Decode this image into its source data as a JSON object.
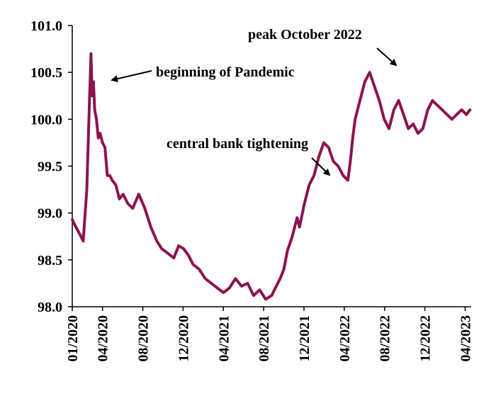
{
  "chart_data": {
    "type": "line",
    "title": "",
    "xlabel": "",
    "ylabel": "",
    "ylim": [
      98.0,
      101.0
    ],
    "yticks": [
      "98.0",
      "98.5",
      "99.0",
      "99.5",
      "100.0",
      "100.5",
      "101.0"
    ],
    "xticks": [
      "01/2020",
      "04/2020",
      "08/2020",
      "12/2020",
      "04/2021",
      "08/2021",
      "12/2021",
      "04/2022",
      "08/2022",
      "12/2022",
      "04/2023"
    ],
    "grid": false,
    "line_color": "#8b1450",
    "annotations": [
      {
        "text": "beginning  of Pandemic",
        "x": 2020.18,
        "y": 100.45
      },
      {
        "text": "central bank tightening",
        "x": 2022.08,
        "y": 99.4
      },
      {
        "text": "peak October 2022",
        "x": 2022.58,
        "y": 100.55
      }
    ],
    "series": [
      {
        "x": [
          2020.0,
          2020.03,
          2020.06,
          2020.09,
          2020.12,
          2020.14,
          2020.155,
          2020.165,
          2020.175,
          2020.185,
          2020.2,
          2020.215,
          2020.23,
          2020.25,
          2020.27,
          2020.29,
          2020.31,
          2020.33,
          2020.36,
          2020.39,
          2020.42,
          2020.46,
          2020.5,
          2020.55,
          2020.6,
          2020.65,
          2020.7,
          2020.74,
          2020.78,
          2020.81,
          2020.84,
          2020.88,
          2020.92,
          2020.96,
          2021.0,
          2021.05,
          2021.1,
          2021.15,
          2021.2,
          2021.25,
          2021.3,
          2021.35,
          2021.4,
          2021.45,
          2021.5,
          2021.55,
          2021.6,
          2021.65,
          2021.68,
          2021.72,
          2021.75,
          2021.78,
          2021.82,
          2021.86,
          2021.88,
          2021.92,
          2021.96,
          2022.0,
          2022.04,
          2022.08,
          2022.12,
          2022.16,
          2022.2,
          2022.24,
          2022.28,
          2022.3,
          2022.32,
          2022.34,
          2022.38,
          2022.42,
          2022.46,
          2022.5,
          2022.54,
          2022.58,
          2022.62,
          2022.66,
          2022.7,
          2022.74,
          2022.78,
          2022.82,
          2022.86,
          2022.9,
          2022.94,
          2022.98,
          2023.02,
          2023.06,
          2023.1,
          2023.14,
          2023.18,
          2023.22,
          2023.26,
          2023.29
        ],
        "y": [
          98.93,
          98.85,
          98.78,
          98.7,
          99.25,
          100.1,
          100.7,
          100.25,
          100.4,
          100.1,
          100.0,
          99.8,
          99.85,
          99.75,
          99.7,
          99.4,
          99.4,
          99.35,
          99.3,
          99.15,
          99.2,
          99.1,
          99.05,
          99.2,
          99.05,
          98.85,
          98.7,
          98.62,
          98.58,
          98.55,
          98.52,
          98.65,
          98.62,
          98.55,
          98.45,
          98.4,
          98.3,
          98.25,
          98.2,
          98.15,
          98.2,
          98.3,
          98.22,
          98.25,
          98.12,
          98.18,
          98.08,
          98.12,
          98.2,
          98.3,
          98.4,
          98.6,
          98.75,
          98.95,
          98.85,
          99.1,
          99.3,
          99.4,
          99.6,
          99.75,
          99.7,
          99.55,
          99.5,
          99.4,
          99.35,
          99.55,
          99.8,
          100.0,
          100.2,
          100.4,
          100.5,
          100.35,
          100.2,
          100.0,
          99.9,
          100.1,
          100.2,
          100.05,
          99.9,
          99.95,
          99.85,
          99.9,
          100.1,
          100.2,
          100.15,
          100.1,
          100.05,
          100.0,
          100.05,
          100.1,
          100.05,
          100.1
        ]
      }
    ]
  }
}
